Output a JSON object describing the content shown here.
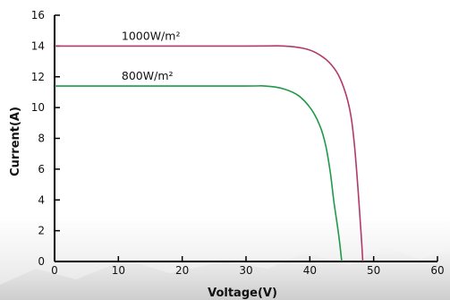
{
  "chart_data": {
    "type": "line",
    "title": "",
    "xlabel": "Voltage(V)",
    "ylabel": "Current(A)",
    "xlim": [
      0,
      60
    ],
    "ylim": [
      0,
      16
    ],
    "xticks": [
      0,
      10,
      20,
      30,
      40,
      50,
      60
    ],
    "yticks": [
      0,
      2,
      4,
      6,
      8,
      10,
      12,
      14,
      16
    ],
    "grid": false,
    "series": [
      {
        "name": "1000W/m²",
        "color": "#b03a6a",
        "x": [
          0,
          30,
          36,
          39,
          41,
          43,
          44.5,
          45.7,
          46.5,
          47,
          47.5,
          48,
          48.3
        ],
        "y": [
          14.0,
          14.0,
          14.0,
          13.85,
          13.55,
          12.95,
          12.1,
          10.8,
          9.3,
          7.5,
          5.0,
          2.0,
          0
        ]
      },
      {
        "name": "800W/m²",
        "color": "#1f9a4a",
        "x": [
          0,
          28,
          33,
          36,
          38.3,
          40.2,
          41.6,
          42.5,
          43.2,
          43.8,
          44.5,
          45.0
        ],
        "y": [
          11.4,
          11.4,
          11.4,
          11.2,
          10.75,
          9.9,
          8.8,
          7.5,
          5.8,
          3.8,
          1.8,
          0
        ]
      }
    ]
  }
}
